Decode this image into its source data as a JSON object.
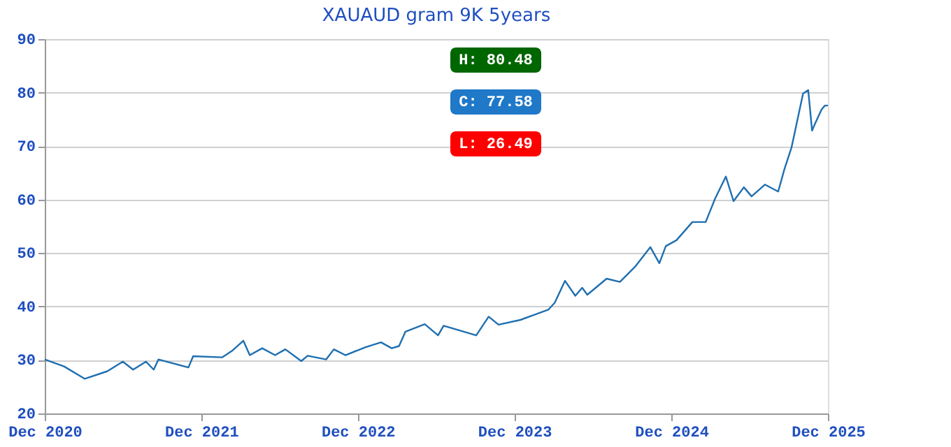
{
  "chart_data": {
    "type": "line",
    "title": "XAUAUD gram 9K 5years",
    "x": [
      "2020-12-01",
      "2021-01-15",
      "2021-03-04",
      "2021-04-26",
      "2021-06-01",
      "2021-06-25",
      "2021-07-25",
      "2021-08-12",
      "2021-08-23",
      "2021-11-01",
      "2021-11-12",
      "2022-01-19",
      "2022-02-12",
      "2022-03-09",
      "2022-03-24",
      "2022-04-22",
      "2022-05-22",
      "2022-06-15",
      "2022-07-22",
      "2022-08-06",
      "2022-09-18",
      "2022-10-06",
      "2022-11-02",
      "2022-12-19",
      "2023-01-24",
      "2023-02-18",
      "2023-03-07",
      "2023-03-22",
      "2023-05-06",
      "2023-06-06",
      "2023-06-19",
      "2023-09-03",
      "2023-10-02",
      "2023-10-25",
      "2023-12-15",
      "2024-02-18",
      "2024-03-04",
      "2024-03-28",
      "2024-04-21",
      "2024-05-07",
      "2024-05-19",
      "2024-07-03",
      "2024-08-03",
      "2024-09-07",
      "2024-10-13",
      "2024-11-03",
      "2024-11-18",
      "2024-12-13",
      "2025-01-19",
      "2025-02-19",
      "2025-03-13",
      "2025-04-07",
      "2025-04-25",
      "2025-05-19",
      "2025-06-06",
      "2025-07-07",
      "2025-08-07",
      "2025-08-22",
      "2025-09-07",
      "2025-10-04",
      "2025-10-16",
      "2025-10-25",
      "2025-11-01",
      "2025-11-16",
      "2025-11-24",
      "2025-12-01"
    ],
    "series": [
      {
        "color": "#1f6fb0",
        "values": [
          30.1,
          28.8,
          26.49,
          27.9,
          29.7,
          28.2,
          29.7,
          28.2,
          30.1,
          28.6,
          30.7,
          30.5,
          31.8,
          33.6,
          30.9,
          32.2,
          30.9,
          32.0,
          29.8,
          30.8,
          30.1,
          32.0,
          30.9,
          32.4,
          33.3,
          32.2,
          32.6,
          35.3,
          36.7,
          34.6,
          36.4,
          34.6,
          38.1,
          36.6,
          37.5,
          39.4,
          40.7,
          44.8,
          42.0,
          43.5,
          42.2,
          45.2,
          44.6,
          47.4,
          51.1,
          48.1,
          51.3,
          52.4,
          55.8,
          55.8,
          60.2,
          64.3,
          59.7,
          62.3,
          60.6,
          62.8,
          61.5,
          65.8,
          69.7,
          79.8,
          80.48,
          72.9,
          74.2,
          76.8,
          77.58,
          77.58
        ]
      }
    ],
    "xlim": [
      "2020-12-01",
      "2025-12-01"
    ],
    "xticks": [
      {
        "value": "2020-12-01",
        "label": "Dec 2020"
      },
      {
        "value": "2021-12-01",
        "label": "Dec 2021"
      },
      {
        "value": "2022-12-01",
        "label": "Dec 2022"
      },
      {
        "value": "2023-12-01",
        "label": "Dec 2023"
      },
      {
        "value": "2024-12-01",
        "label": "Dec 2024"
      },
      {
        "value": "2025-12-01",
        "label": "Dec 2025"
      }
    ],
    "ylim": [
      20,
      90
    ],
    "yticks": [
      20,
      30,
      40,
      50,
      60,
      70,
      80,
      90
    ],
    "grid": "y",
    "marker": "none",
    "line_style": "solid",
    "annotations": [
      "H: 80.48",
      "C: 77.58",
      "L: 26.49"
    ]
  }
}
